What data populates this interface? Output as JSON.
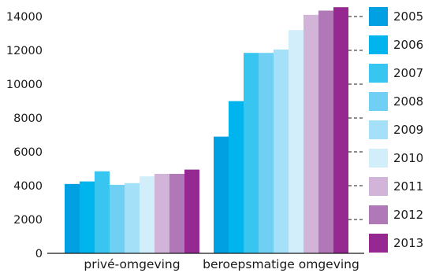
{
  "chart_data": {
    "type": "bar",
    "categories": [
      "privé-omgeving",
      "beroepsmatige omgeving"
    ],
    "series": [
      {
        "name": "2005",
        "color": "#00a0e3",
        "values": [
          4100,
          6900
        ]
      },
      {
        "name": "2006",
        "color": "#00b4ee",
        "values": [
          4250,
          9000
        ]
      },
      {
        "name": "2007",
        "color": "#38c5f0",
        "values": [
          4850,
          11850
        ]
      },
      {
        "name": "2008",
        "color": "#6fd0f4",
        "values": [
          4050,
          11850
        ]
      },
      {
        "name": "2009",
        "color": "#a4e0f8",
        "values": [
          4150,
          12050
        ]
      },
      {
        "name": "2010",
        "color": "#d2eefb",
        "values": [
          4550,
          13200
        ]
      },
      {
        "name": "2011",
        "color": "#d2b4d8",
        "values": [
          4700,
          14100
        ]
      },
      {
        "name": "2012",
        "color": "#b078b6",
        "values": [
          4700,
          14350
        ]
      },
      {
        "name": "2013",
        "color": "#962891",
        "values": [
          4950,
          14550
        ]
      }
    ],
    "ylim": [
      0,
      14000
    ],
    "yticks": [
      "0",
      "2000",
      "4000",
      "6000",
      "8000",
      "10000",
      "12000",
      "14000"
    ],
    "title": "",
    "xlabel": "",
    "ylabel": "",
    "grid": "dashed horizontal lines on the right side only",
    "legend_position": "right"
  }
}
